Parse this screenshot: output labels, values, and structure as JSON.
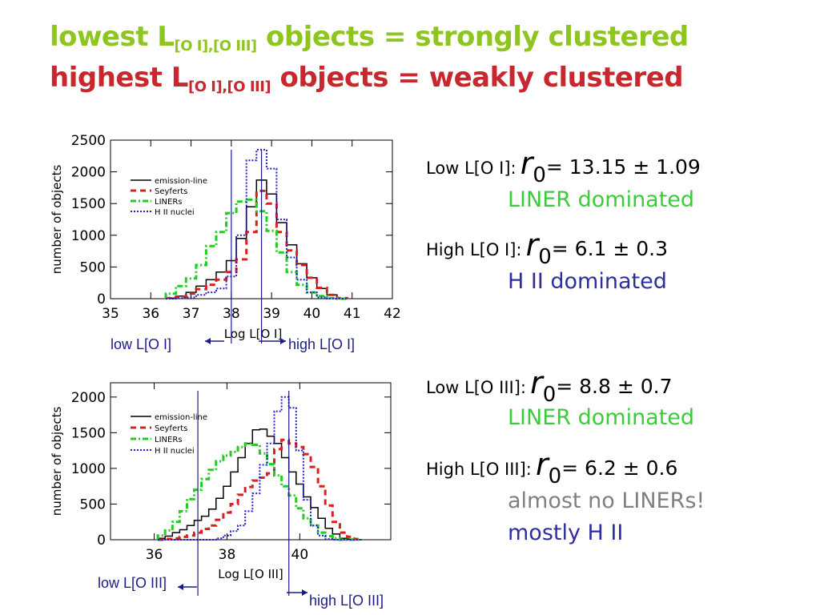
{
  "colors": {
    "title1": "#8fc51f",
    "title2": "#c8282d",
    "liner": "#3acc3a",
    "h2": "#2e2e9e",
    "gray": "#808080",
    "emission": "#000000",
    "seyferts": "#d82020",
    "liners_line": "#22cc22",
    "hii_line": "#2222cc",
    "cut": "#1a1a8a"
  },
  "header": {
    "line1_pre": "lowest L",
    "line1_sub": "[O I],[O III]",
    "line1_post": " objects = strongly clustered",
    "line2_pre": "highest L",
    "line2_sub": "[O I],[O III]",
    "line2_post": " objects = weakly clustered"
  },
  "results": {
    "low_oi": {
      "label": "Low L[O I]:",
      "r": "r",
      "sub": "0",
      "value": "= 13.15 ± 1.09",
      "note": "LINER dominated"
    },
    "high_oi": {
      "label": "High L[O I]:",
      "r": "r",
      "sub": "0",
      "value": "= 6.1 ± 0.3",
      "note": "H II dominated"
    },
    "low_oiii": {
      "label": "Low L[O III]:",
      "r": "r",
      "sub": "0",
      "value": "= 8.8 ± 0.7",
      "note": "LINER dominated"
    },
    "high_oiii": {
      "label": "High L[O III]:",
      "r": "r",
      "sub": "0",
      "value": "= 6.2 ± 0.6",
      "note1": "almost no LINERs!",
      "note2": "mostly H II"
    }
  },
  "arrows": {
    "low_oi": "low L[O I]",
    "high_oi": "high L[O I]",
    "low_oiii": "low L[O III]",
    "high_oiii": "high L[O III]"
  },
  "chart_data": [
    {
      "type": "line",
      "style": "step histogram",
      "xlabel": "Log L[O I]",
      "ylabel": "number of objects",
      "xlim": [
        35,
        42
      ],
      "ylim": [
        0,
        2500
      ],
      "xticks": [
        "35",
        "36",
        "37",
        "38",
        "39",
        "40",
        "41",
        "42"
      ],
      "yticks": [
        "0",
        "500",
        "1000",
        "1500",
        "2000",
        "2500"
      ],
      "legend_position": "top-left",
      "cuts": [
        38.0,
        38.75
      ],
      "x": [
        36.5,
        36.75,
        37.0,
        37.25,
        37.5,
        37.75,
        38.0,
        38.25,
        38.5,
        38.75,
        39.0,
        39.25,
        39.5,
        39.75,
        40.0,
        40.25,
        40.5,
        40.75
      ],
      "series": [
        {
          "name": "emission-line",
          "values": [
            10,
            40,
            100,
            200,
            300,
            420,
            600,
            950,
            1450,
            1870,
            1650,
            1200,
            850,
            550,
            330,
            160,
            60,
            10
          ]
        },
        {
          "name": "Seyferts",
          "values": [
            10,
            30,
            80,
            150,
            220,
            300,
            420,
            620,
            1050,
            1700,
            1500,
            1050,
            760,
            530,
            330,
            170,
            60,
            10
          ]
        },
        {
          "name": "LINERs",
          "values": [
            80,
            200,
            320,
            530,
            830,
            1050,
            1350,
            1530,
            1560,
            1380,
            1070,
            730,
            420,
            220,
            100,
            40,
            10,
            0
          ]
        },
        {
          "name": "H II nuclei",
          "values": [
            0,
            10,
            20,
            60,
            100,
            160,
            350,
            1000,
            2180,
            2350,
            2050,
            1250,
            650,
            300,
            100,
            20,
            0,
            0
          ]
        }
      ]
    },
    {
      "type": "line",
      "style": "step histogram",
      "xlabel": "Log L[O III]",
      "ylabel": "number of objects",
      "xlim": [
        34.8,
        42.5
      ],
      "ylim": [
        0,
        2200
      ],
      "xticks": [
        "36",
        "38",
        "40"
      ],
      "yticks": [
        "0",
        "500",
        "1000",
        "1500",
        "2000"
      ],
      "legend_position": "top-left",
      "cuts": [
        37.2,
        39.7
      ],
      "x": [
        36.2,
        36.4,
        36.6,
        36.8,
        37.0,
        37.2,
        37.4,
        37.6,
        37.8,
        38.0,
        38.2,
        38.4,
        38.6,
        38.8,
        39.0,
        39.2,
        39.4,
        39.6,
        39.8,
        40.0,
        40.2,
        40.4,
        40.6,
        40.8,
        41.0,
        41.2,
        41.4,
        41.6
      ],
      "series": [
        {
          "name": "emission-line",
          "values": [
            20,
            50,
            100,
            140,
            200,
            270,
            330,
            430,
            580,
            750,
            950,
            1150,
            1350,
            1540,
            1550,
            1450,
            1350,
            1150,
            950,
            780,
            600,
            450,
            300,
            160,
            80,
            20,
            10,
            0
          ]
        },
        {
          "name": "Seyferts",
          "values": [
            0,
            10,
            20,
            40,
            60,
            100,
            150,
            200,
            280,
            380,
            500,
            630,
            740,
            830,
            870,
            930,
            1270,
            1400,
            1350,
            1300,
            1200,
            1020,
            750,
            480,
            250,
            100,
            40,
            10
          ]
        },
        {
          "name": "LINERs",
          "values": [
            60,
            130,
            250,
            400,
            570,
            700,
            850,
            980,
            1100,
            1180,
            1230,
            1300,
            1350,
            1330,
            1210,
            1060,
            900,
            750,
            620,
            440,
            300,
            200,
            100,
            50,
            20,
            0,
            0,
            0
          ]
        },
        {
          "name": "H II nuclei",
          "values": [
            0,
            0,
            0,
            0,
            0,
            0,
            0,
            0,
            20,
            60,
            120,
            200,
            400,
            650,
            1050,
            1350,
            1800,
            2000,
            1850,
            1250,
            560,
            200,
            60,
            10,
            0,
            0,
            0,
            0
          ]
        }
      ]
    }
  ]
}
